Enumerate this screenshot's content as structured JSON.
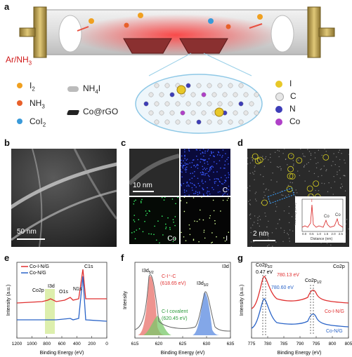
{
  "panel_labels": {
    "a": "a",
    "b": "b",
    "c": "c",
    "d": "d",
    "e": "e",
    "f": "f",
    "g": "g"
  },
  "panel_a": {
    "gas": "Ar/NH",
    "gas_sub": "3",
    "legend_left": [
      {
        "main": "I",
        "sub": "2",
        "color": "#f0a020"
      },
      {
        "main": "NH",
        "sub": "3",
        "color": "#e8602a"
      },
      {
        "main": "CoI",
        "sub": "2",
        "color": "#3a9ad9"
      }
    ],
    "legend_mid": [
      {
        "main": "NH",
        "sub": "4",
        "tail": "I"
      },
      {
        "main": "Co@rGO"
      }
    ],
    "legend_right": [
      {
        "label": "I",
        "color": "#e8c828"
      },
      {
        "label": "C",
        "color": "#e6e6e6"
      },
      {
        "label": "N",
        "color": "#3d3db8"
      },
      {
        "label": "Co",
        "color": "#b040c8"
      }
    ]
  },
  "panel_b": {
    "scale": "50 nm"
  },
  "panel_c": {
    "scale": "10 nm",
    "maps": [
      "C",
      "Co",
      "I"
    ]
  },
  "panel_d": {
    "scale": "2 nm",
    "inset": {
      "ylabel": "Intensity (a.u.)",
      "xlabel": "Distance (nm)",
      "peaks": [
        "I",
        "Co",
        "Co"
      ],
      "ticks": [
        "0.0",
        "0.5",
        "1.0",
        "1.5",
        "2.0",
        "2.5"
      ]
    }
  },
  "chart_data": [
    {
      "panel": "e",
      "type": "line",
      "xlabel": "Binding Energy (eV)",
      "ylabel": "Intensity (a.u.)",
      "xlim": [
        1200,
        0
      ],
      "xticks": [
        "1200",
        "1000",
        "800",
        "600",
        "400",
        "200",
        "0"
      ],
      "series": [
        {
          "name": "Co-I-N/G",
          "color": "#e03030"
        },
        {
          "name": "Co-N/G",
          "color": "#2a64c8"
        }
      ],
      "annotations": [
        "C1s",
        "Co2p",
        "I3d",
        "O1s",
        "N1s"
      ]
    },
    {
      "panel": "f",
      "type": "line",
      "xlabel": "Binding Energy (eV)",
      "ylabel": "Intensity",
      "xlim": [
        615,
        635
      ],
      "xticks": [
        "615",
        "620",
        "625",
        "630",
        "635"
      ],
      "corner_label": "I3d",
      "annotations": [
        {
          "main": "I3d",
          "sub": "5/2"
        },
        {
          "text": "C-I⁺-C",
          "color": "#e03030"
        },
        {
          "text": "(618.65 eV)",
          "color": "#e03030"
        },
        {
          "text": "C-I covalent",
          "color": "#2a9a3a"
        },
        {
          "text": "(620.45 eV)",
          "color": "#2a9a3a"
        },
        {
          "main": "I3d",
          "sub": "3/2"
        }
      ]
    },
    {
      "panel": "g",
      "type": "line",
      "xlabel": "Binding Energy (eV)",
      "ylabel": "Intensity (a.u.)",
      "xlim": [
        775,
        805
      ],
      "xticks": [
        "775",
        "780",
        "785",
        "790",
        "795",
        "800",
        "805"
      ],
      "corner_label": "Co2p",
      "series": [
        {
          "name": "Co-I-N/G",
          "color": "#e03030"
        },
        {
          "name": "Co-N/G",
          "color": "#2a64c8"
        }
      ],
      "annotations": [
        {
          "main": "Co2p",
          "sub": "3/2"
        },
        {
          "text": "0.47 eV"
        },
        {
          "text": "780.13 eV",
          "color": "#e03030"
        },
        {
          "text": "780.60 eV",
          "color": "#2a64c8"
        },
        {
          "main": "Co2p",
          "sub": "1/2"
        }
      ]
    }
  ]
}
